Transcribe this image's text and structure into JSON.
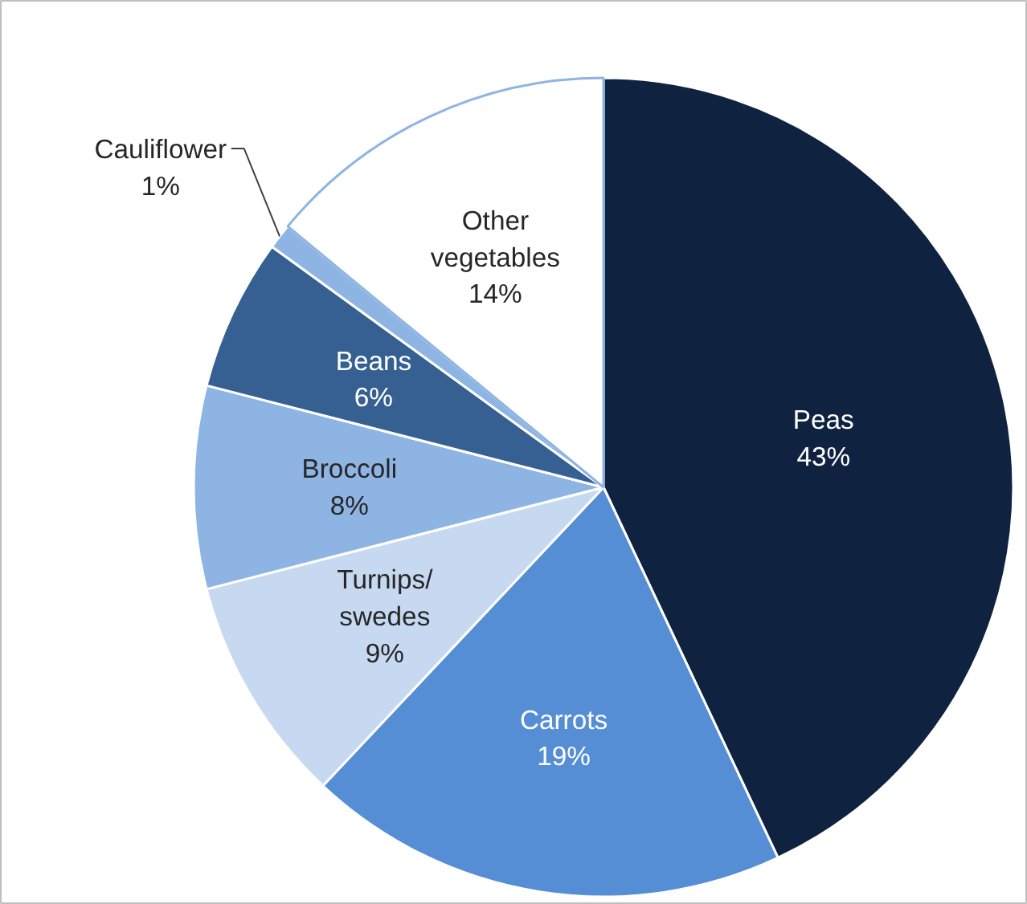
{
  "chart_data": {
    "type": "pie",
    "categories": [
      "Peas",
      "Carrots",
      "Turnips/swedes",
      "Broccoli",
      "Beans",
      "Cauliflower",
      "Other vegetables"
    ],
    "values": [
      43,
      19,
      9,
      8,
      6,
      1,
      14
    ],
    "value_labels": [
      "43%",
      "19%",
      "9%",
      "8%",
      "6%",
      "1%",
      "14%"
    ],
    "colors": [
      "#0f2341",
      "#558ed5",
      "#c6d9f1",
      "#8eb4e3",
      "#366092",
      "#8eb4e3",
      "#ffffff"
    ]
  }
}
